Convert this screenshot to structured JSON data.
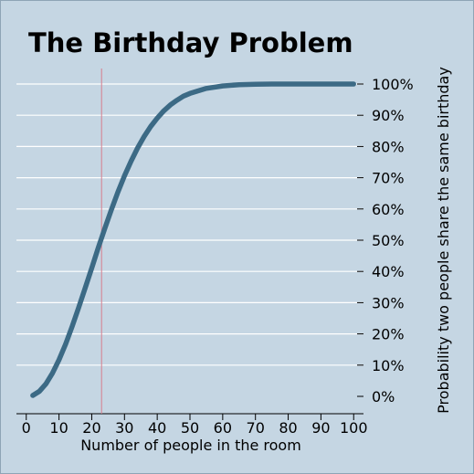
{
  "chart_data": {
    "type": "line",
    "title": "The Birthday Problem",
    "xlabel": "Number of people in the room",
    "ylabel": "Probability two people share the same birthday",
    "xlim": [
      -3,
      103
    ],
    "ylim": [
      0,
      100
    ],
    "x_ticks": [
      "0",
      "10",
      "20",
      "30",
      "40",
      "50",
      "60",
      "70",
      "80",
      "90",
      "100"
    ],
    "y_ticks": [
      "0%",
      "10%",
      "20%",
      "30%",
      "40%",
      "50%",
      "60%",
      "70%",
      "80%",
      "90%",
      "100%"
    ],
    "y_axis_position": "right",
    "grid": "horizontal",
    "reference_line_x": 23,
    "series": [
      {
        "x": [
          2,
          4,
          6,
          8,
          10,
          12,
          14,
          16,
          18,
          20,
          22,
          23,
          24,
          26,
          28,
          30,
          32,
          34,
          36,
          38,
          40,
          42,
          44,
          46,
          48,
          50,
          55,
          60,
          65,
          70,
          75,
          80,
          85,
          90,
          95,
          100
        ],
        "values": [
          0.3,
          1.6,
          4.0,
          7.4,
          11.7,
          16.7,
          22.3,
          28.4,
          34.7,
          41.1,
          47.6,
          50.7,
          53.8,
          59.8,
          65.4,
          70.6,
          75.3,
          79.5,
          83.2,
          86.4,
          89.1,
          91.4,
          93.3,
          94.8,
          96.1,
          97.0,
          98.6,
          99.4,
          99.8,
          99.9,
          100,
          100,
          100,
          100,
          100,
          100
        ],
        "color": "#3c6a85"
      }
    ],
    "colors": {
      "background": "#c5d6e3",
      "grid": "#ffffff",
      "line": "#3c6a85",
      "reference_line": "#d77d8c"
    }
  }
}
